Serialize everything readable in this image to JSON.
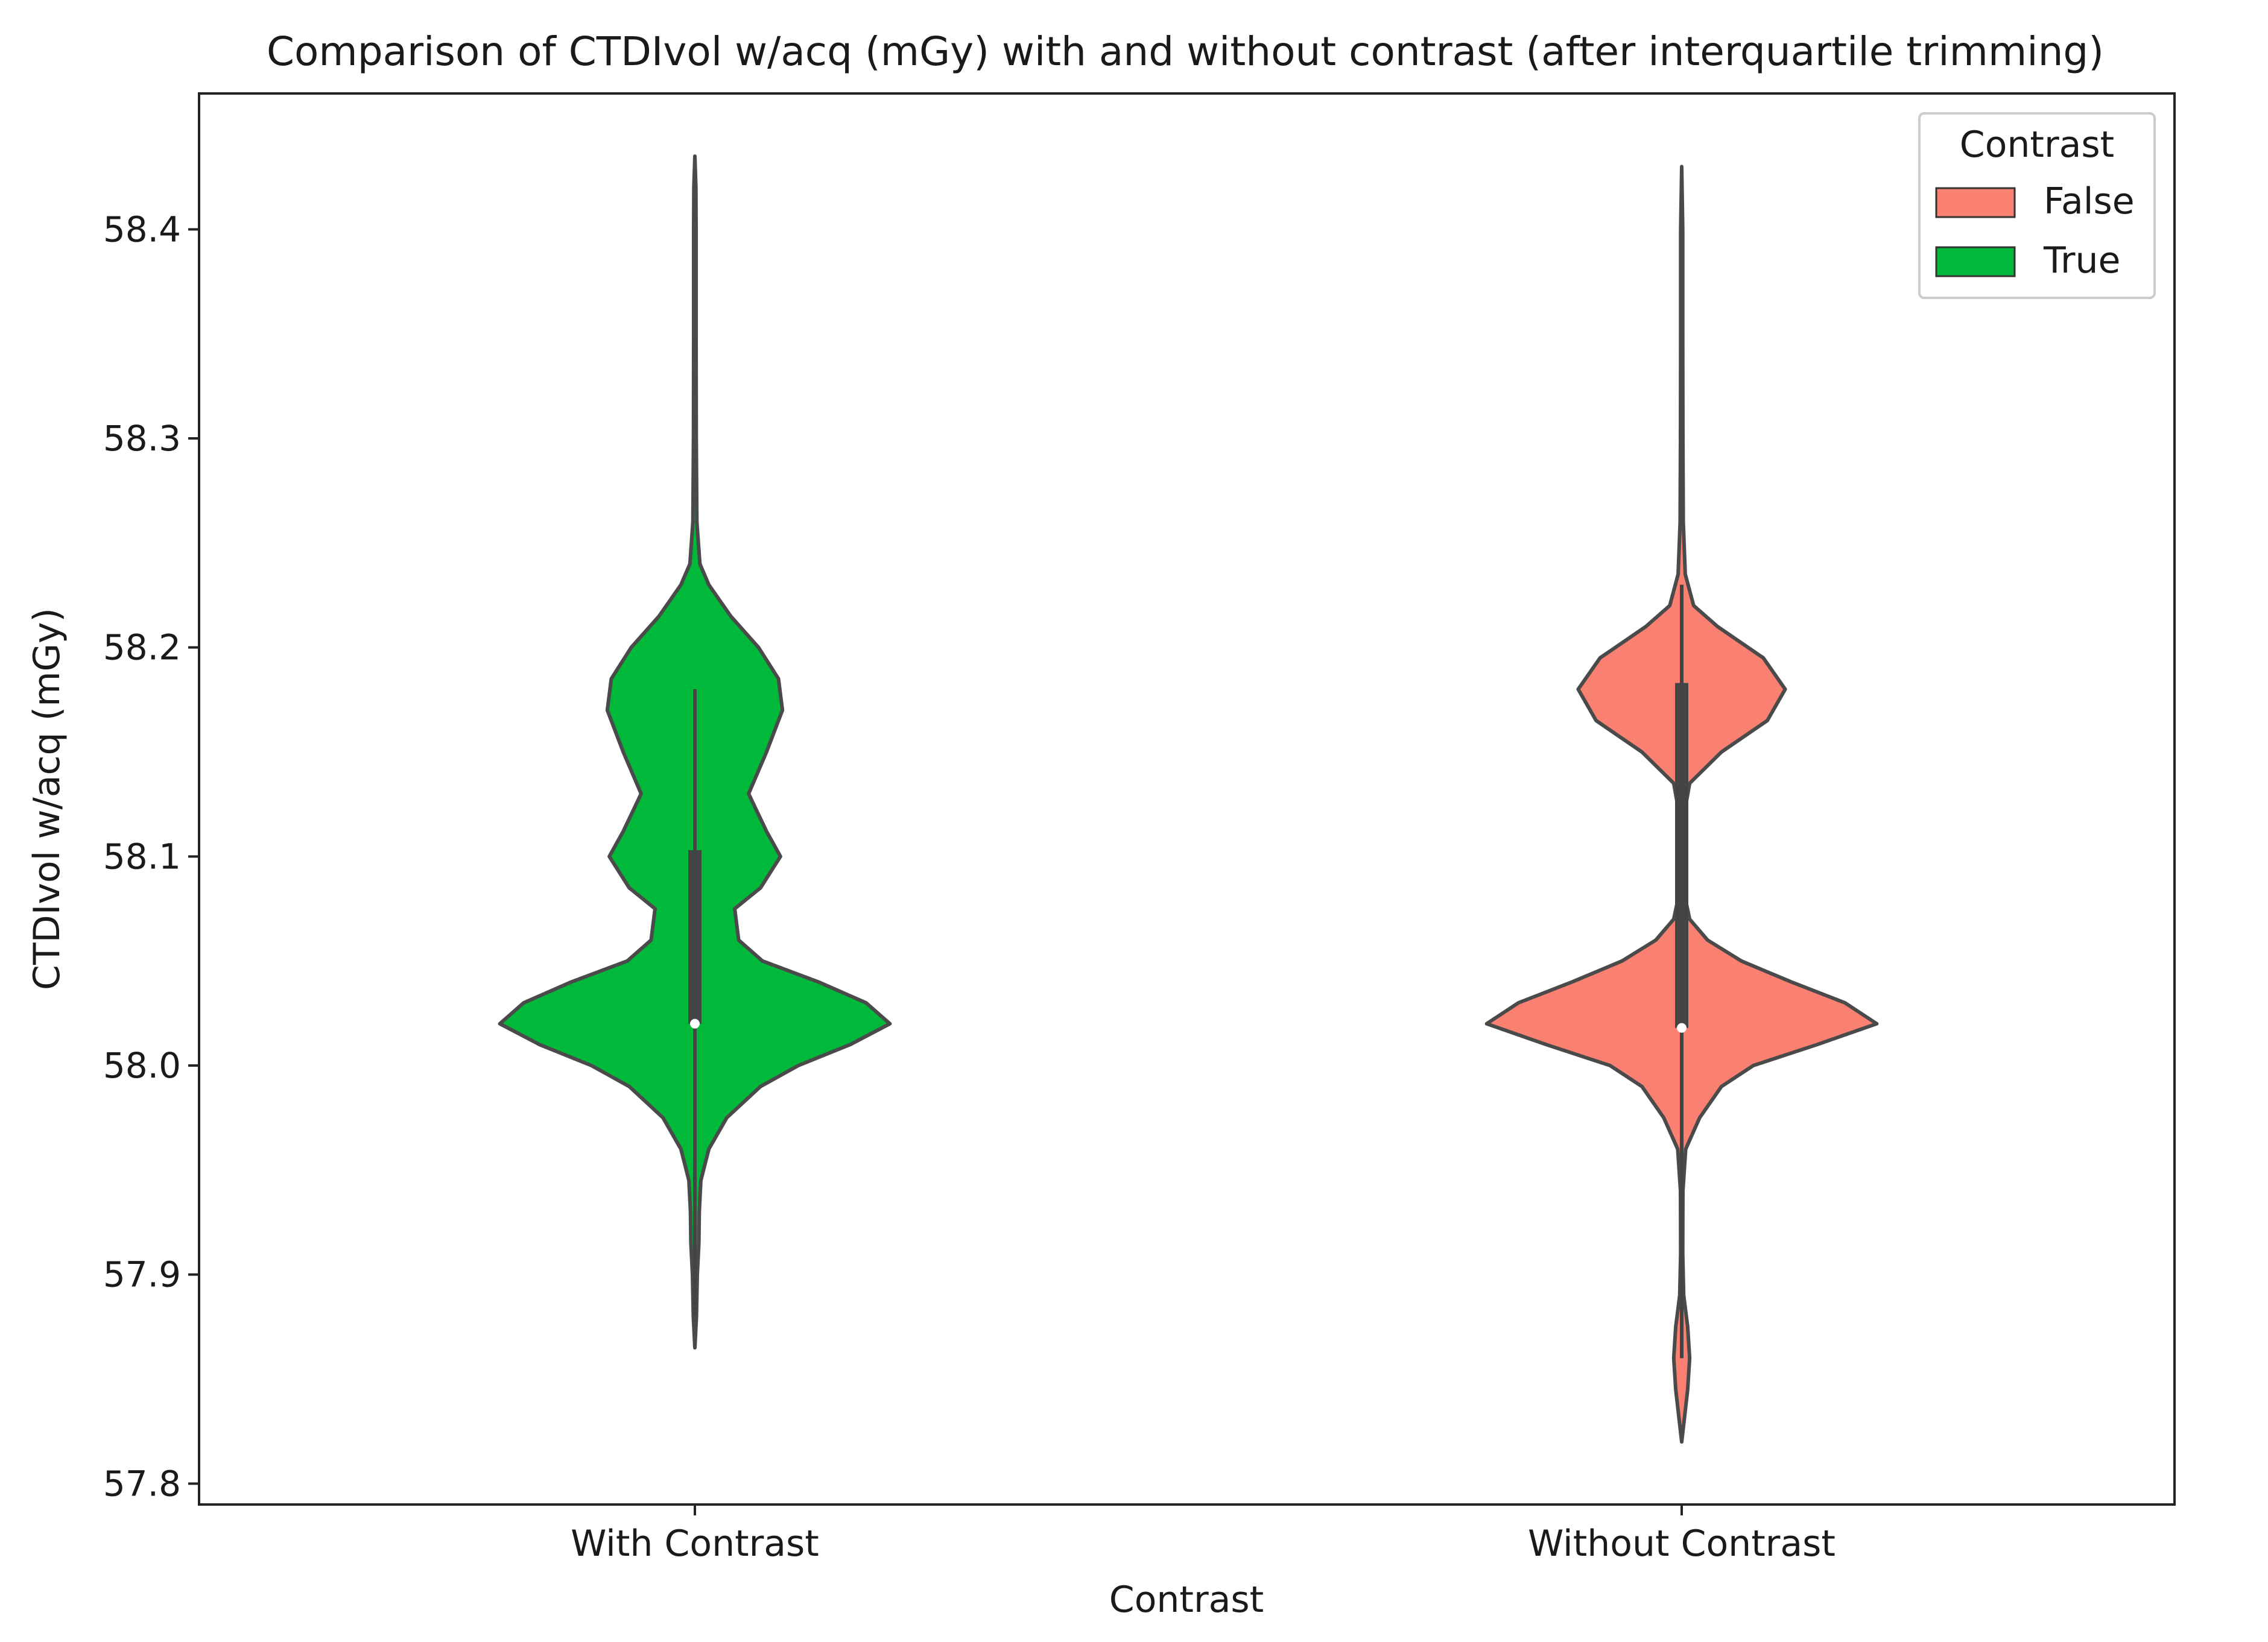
{
  "chart_data": {
    "type": "violin",
    "title": "Comparison of CTDIvol w/acq (mGy) with and without contrast (after interquartile trimming)",
    "xlabel": "Contrast",
    "ylabel": "CTDIvol w/acq (mGy)",
    "categories": [
      "With Contrast",
      "Without Contrast"
    ],
    "ylim": [
      57.79,
      58.465
    ],
    "yticks": [
      57.8,
      57.9,
      58.0,
      58.1,
      58.2,
      58.3,
      58.4
    ],
    "ytick_labels": [
      "57.8",
      "57.9",
      "58.0",
      "58.1",
      "58.2",
      "58.3",
      "58.4"
    ],
    "legend": {
      "title": "Contrast",
      "placement": "top-right",
      "entries": [
        {
          "label": "False",
          "color": "#fa8072"
        },
        {
          "label": "True",
          "color": "#00b93a"
        }
      ]
    },
    "series": [
      {
        "category": "With Contrast",
        "hue": "True",
        "color": "#00b93a",
        "min": 57.865,
        "max": 58.435,
        "q1": 58.02,
        "median": 58.02,
        "q3": 58.103,
        "whisker_low": 57.88,
        "whisker_high": 58.18,
        "density": [
          [
            57.865,
            0.0
          ],
          [
            57.88,
            0.008
          ],
          [
            57.9,
            0.012
          ],
          [
            57.915,
            0.02
          ],
          [
            57.93,
            0.022
          ],
          [
            57.945,
            0.03
          ],
          [
            57.96,
            0.07
          ],
          [
            57.975,
            0.16
          ],
          [
            57.99,
            0.33
          ],
          [
            58.0,
            0.52
          ],
          [
            58.01,
            0.78
          ],
          [
            58.02,
            0.98
          ],
          [
            58.03,
            0.86
          ],
          [
            58.04,
            0.62
          ],
          [
            58.05,
            0.34
          ],
          [
            58.06,
            0.22
          ],
          [
            58.075,
            0.2
          ],
          [
            58.085,
            0.33
          ],
          [
            58.1,
            0.43
          ],
          [
            58.112,
            0.36
          ],
          [
            58.13,
            0.27
          ],
          [
            58.15,
            0.36
          ],
          [
            58.17,
            0.44
          ],
          [
            58.185,
            0.42
          ],
          [
            58.2,
            0.32
          ],
          [
            58.215,
            0.18
          ],
          [
            58.23,
            0.07
          ],
          [
            58.24,
            0.025
          ],
          [
            58.26,
            0.01
          ],
          [
            58.3,
            0.007
          ],
          [
            58.35,
            0.006
          ],
          [
            58.4,
            0.006
          ],
          [
            58.42,
            0.005
          ],
          [
            58.435,
            0.0
          ]
        ]
      },
      {
        "category": "Without Contrast",
        "hue": "False",
        "color": "#fa8072",
        "min": 57.82,
        "max": 58.43,
        "q1": 58.018,
        "median": 58.018,
        "q3": 58.183,
        "whisker_low": 57.86,
        "whisker_high": 58.23,
        "density": [
          [
            57.82,
            0.0
          ],
          [
            57.83,
            0.012
          ],
          [
            57.845,
            0.03
          ],
          [
            57.86,
            0.04
          ],
          [
            57.875,
            0.03
          ],
          [
            57.89,
            0.01
          ],
          [
            57.91,
            0.005
          ],
          [
            57.94,
            0.006
          ],
          [
            57.96,
            0.02
          ],
          [
            57.975,
            0.09
          ],
          [
            57.99,
            0.2
          ],
          [
            58.0,
            0.36
          ],
          [
            58.01,
            0.68
          ],
          [
            58.02,
            0.98
          ],
          [
            58.03,
            0.82
          ],
          [
            58.04,
            0.55
          ],
          [
            58.05,
            0.3
          ],
          [
            58.06,
            0.13
          ],
          [
            58.07,
            0.04
          ],
          [
            58.08,
            0.018
          ],
          [
            58.1,
            0.012
          ],
          [
            58.12,
            0.012
          ],
          [
            58.135,
            0.04
          ],
          [
            58.15,
            0.2
          ],
          [
            58.165,
            0.43
          ],
          [
            58.18,
            0.52
          ],
          [
            58.195,
            0.41
          ],
          [
            58.21,
            0.18
          ],
          [
            58.22,
            0.06
          ],
          [
            58.235,
            0.018
          ],
          [
            58.26,
            0.008
          ],
          [
            58.3,
            0.006
          ],
          [
            58.35,
            0.005
          ],
          [
            58.4,
            0.005
          ],
          [
            58.43,
            0.0
          ]
        ]
      }
    ]
  }
}
